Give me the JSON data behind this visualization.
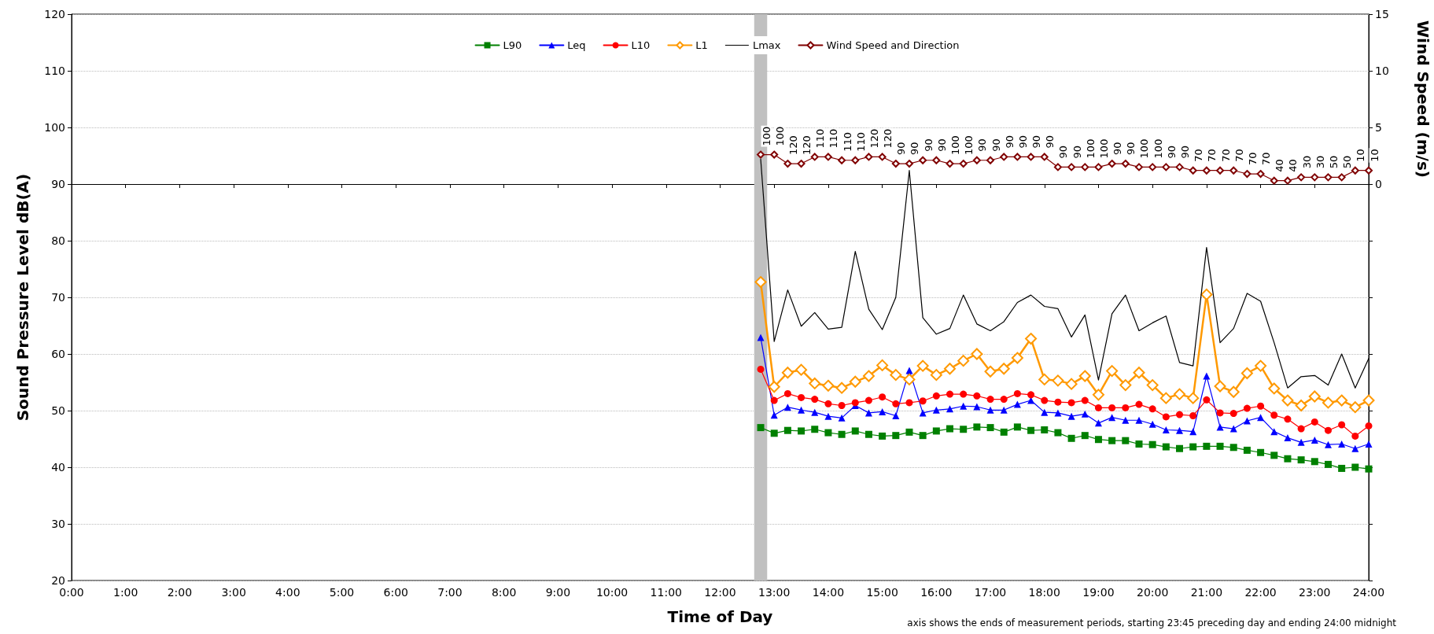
{
  "chart_data": {
    "type": "line",
    "xlabel": "Time of Day",
    "ylabel": "Sound Pressure Level dB(A)",
    "y2label": "Wind Speed (m/s)",
    "annotations": [
      "axis shows the ends of measurement periods, starting 23:45 preceding day and ending 24:00 midnight",
      {
        "text": "100",
        "x": 12.75,
        "y": 95.2
      },
      {
        "text": "100",
        "x": 13,
        "y": 95.2
      },
      {
        "text": "120",
        "x": 13.25,
        "y": 93.6
      },
      {
        "text": "120",
        "x": 13.5,
        "y": 93.6
      },
      {
        "text": "110",
        "x": 13.75,
        "y": 94.8
      },
      {
        "text": "110",
        "x": 14,
        "y": 94.8
      },
      {
        "text": "110",
        "x": 14.25,
        "y": 94.2
      },
      {
        "text": "110",
        "x": 14.5,
        "y": 94.2
      },
      {
        "text": "120",
        "x": 14.75,
        "y": 94.8
      },
      {
        "text": "120",
        "x": 15,
        "y": 94.8
      },
      {
        "text": "90",
        "x": 15.25,
        "y": 93.6
      },
      {
        "text": "90",
        "x": 15.5,
        "y": 93.6
      },
      {
        "text": "90",
        "x": 15.75,
        "y": 94.2
      },
      {
        "text": "90",
        "x": 16,
        "y": 94.2
      },
      {
        "text": "100",
        "x": 16.25,
        "y": 93.6
      },
      {
        "text": "100",
        "x": 16.5,
        "y": 93.6
      },
      {
        "text": "90",
        "x": 16.75,
        "y": 94.2
      },
      {
        "text": "90",
        "x": 17,
        "y": 94.2
      },
      {
        "text": "90",
        "x": 17.25,
        "y": 94.8
      },
      {
        "text": "90",
        "x": 17.5,
        "y": 94.8
      },
      {
        "text": "90",
        "x": 17.75,
        "y": 94.8
      },
      {
        "text": "90",
        "x": 18,
        "y": 94.8
      },
      {
        "text": "90",
        "x": 18.25,
        "y": 93.0
      },
      {
        "text": "90",
        "x": 18.5,
        "y": 93.0
      },
      {
        "text": "100",
        "x": 18.75,
        "y": 93.0
      },
      {
        "text": "100",
        "x": 19,
        "y": 93.0
      },
      {
        "text": "90",
        "x": 19.25,
        "y": 93.6
      },
      {
        "text": "90",
        "x": 19.5,
        "y": 93.6
      },
      {
        "text": "100",
        "x": 19.75,
        "y": 93.0
      },
      {
        "text": "100",
        "x": 20,
        "y": 93.0
      },
      {
        "text": "90",
        "x": 20.25,
        "y": 93.0
      },
      {
        "text": "90",
        "x": 20.5,
        "y": 93.0
      },
      {
        "text": "70",
        "x": 20.75,
        "y": 92.4
      },
      {
        "text": "70",
        "x": 21,
        "y": 92.4
      },
      {
        "text": "70",
        "x": 21.25,
        "y": 92.4
      },
      {
        "text": "70",
        "x": 21.5,
        "y": 92.4
      },
      {
        "text": "70",
        "x": 21.75,
        "y": 91.8
      },
      {
        "text": "70",
        "x": 22,
        "y": 91.8
      },
      {
        "text": "40",
        "x": 22.25,
        "y": 90.6
      },
      {
        "text": "40",
        "x": 22.5,
        "y": 90.6
      },
      {
        "text": "30",
        "x": 22.75,
        "y": 91.2
      },
      {
        "text": "30",
        "x": 23,
        "y": 91.2
      },
      {
        "text": "50",
        "x": 23.25,
        "y": 91.2
      },
      {
        "text": "50",
        "x": 23.5,
        "y": 91.2
      },
      {
        "text": "10",
        "x": 23.75,
        "y": 92.4
      },
      {
        "text": "10",
        "x": 24,
        "y": 92.4
      }
    ],
    "x": [
      12.75,
      13,
      13.25,
      13.5,
      13.75,
      14,
      14.25,
      14.5,
      14.75,
      15,
      15.25,
      15.5,
      15.75,
      16,
      16.25,
      16.5,
      16.75,
      17,
      17.25,
      17.5,
      17.75,
      18,
      18.25,
      18.5,
      18.75,
      19,
      19.25,
      19.5,
      19.75,
      20,
      20.25,
      20.5,
      20.75,
      21,
      21.25,
      21.5,
      21.75,
      22,
      22.25,
      22.5,
      22.75,
      23,
      23.25,
      23.5,
      23.75,
      24
    ],
    "xlim": [
      0,
      24
    ],
    "xticks": [
      {
        "value": 0,
        "label": "0:00"
      },
      {
        "value": 1,
        "label": "1:00"
      },
      {
        "value": 2,
        "label": "2:00"
      },
      {
        "value": 3,
        "label": "3:00"
      },
      {
        "value": 4,
        "label": "4:00"
      },
      {
        "value": 5,
        "label": "5:00"
      },
      {
        "value": 6,
        "label": "6:00"
      },
      {
        "value": 7,
        "label": "7:00"
      },
      {
        "value": 8,
        "label": "8:00"
      },
      {
        "value": 9,
        "label": "9:00"
      },
      {
        "value": 10,
        "label": "10:00"
      },
      {
        "value": 11,
        "label": "11:00"
      },
      {
        "value": 12,
        "label": "12:00"
      },
      {
        "value": 13,
        "label": "13:00"
      },
      {
        "value": 14,
        "label": "14:00"
      },
      {
        "value": 15,
        "label": "15:00"
      },
      {
        "value": 16,
        "label": "16:00"
      },
      {
        "value": 17,
        "label": "17:00"
      },
      {
        "value": 18,
        "label": "18:00"
      },
      {
        "value": 19,
        "label": "19:00"
      },
      {
        "value": 20,
        "label": "20:00"
      },
      {
        "value": 21,
        "label": "21:00"
      },
      {
        "value": 22,
        "label": "22:00"
      },
      {
        "value": 23,
        "label": "23:00"
      },
      {
        "value": 24,
        "label": "24:00"
      }
    ],
    "ylim": [
      20,
      120
    ],
    "yticks": [
      20,
      30,
      40,
      50,
      60,
      70,
      80,
      90,
      100,
      110,
      120
    ],
    "y2lim": [
      -35,
      15
    ],
    "y2ticks": [
      {
        "value": -35,
        "label": null
      },
      {
        "value": -30,
        "label": null
      },
      {
        "value": -25,
        "label": null
      },
      {
        "value": -20,
        "label": null
      },
      {
        "value": -15,
        "label": null
      },
      {
        "value": -10,
        "label": null
      },
      {
        "value": -5,
        "label": null
      },
      0,
      5,
      10,
      15
    ],
    "grid": "y",
    "legend": "top",
    "bands": [
      {
        "axis": "x",
        "from": 12.63,
        "to": 12.87,
        "color": "#c0c0c0"
      }
    ],
    "series": [
      {
        "name": "L90",
        "color": "#008000",
        "marker": "square",
        "values": [
          47.0,
          46.0,
          46.5,
          46.4,
          46.7,
          46.1,
          45.8,
          46.4,
          45.8,
          45.5,
          45.6,
          46.2,
          45.6,
          46.4,
          46.8,
          46.7,
          47.1,
          47.0,
          46.2,
          47.1,
          46.5,
          46.6,
          46.1,
          45.1,
          45.6,
          44.9,
          44.7,
          44.7,
          44.1,
          44.0,
          43.6,
          43.3,
          43.6,
          43.7,
          43.7,
          43.5,
          43.0,
          42.6,
          42.1,
          41.5,
          41.3,
          41.0,
          40.5,
          39.8,
          40.0,
          39.7
        ]
      },
      {
        "name": "Leq",
        "color": "#0000ff",
        "marker": "triangle",
        "values": [
          62.9,
          49.2,
          50.6,
          50.1,
          49.7,
          49.0,
          48.7,
          50.9,
          49.6,
          49.8,
          49.1,
          57.1,
          49.6,
          50.1,
          50.3,
          50.8,
          50.7,
          50.1,
          50.1,
          51.1,
          51.8,
          49.7,
          49.6,
          49.0,
          49.4,
          47.8,
          48.8,
          48.3,
          48.3,
          47.6,
          46.6,
          46.5,
          46.3,
          56.1,
          47.1,
          46.8,
          48.2,
          48.8,
          46.3,
          45.2,
          44.4,
          44.8,
          44.0,
          44.1,
          43.3,
          44.1
        ]
      },
      {
        "name": "L10",
        "color": "#ff0000",
        "marker": "circle",
        "values": [
          57.3,
          51.8,
          53.0,
          52.3,
          52.0,
          51.2,
          50.9,
          51.4,
          51.8,
          52.4,
          51.2,
          51.4,
          51.7,
          52.6,
          52.9,
          52.9,
          52.6,
          52.0,
          52.0,
          53.0,
          52.8,
          51.8,
          51.5,
          51.4,
          51.8,
          50.5,
          50.5,
          50.5,
          51.1,
          50.3,
          48.9,
          49.3,
          49.1,
          51.9,
          49.6,
          49.5,
          50.4,
          50.8,
          49.2,
          48.5,
          46.8,
          48.0,
          46.5,
          47.5,
          45.5,
          47.3
        ]
      },
      {
        "name": "L1",
        "color": "#ff9900",
        "marker": "diamond",
        "values": [
          72.7,
          54.2,
          56.7,
          57.2,
          54.8,
          54.4,
          54.0,
          55.1,
          56.1,
          58.0,
          56.3,
          55.5,
          57.9,
          56.3,
          57.4,
          58.8,
          60.0,
          56.9,
          57.4,
          59.3,
          62.7,
          55.5,
          55.3,
          54.7,
          56.1,
          52.8,
          57.0,
          54.5,
          56.7,
          54.5,
          52.2,
          52.9,
          52.2,
          70.5,
          54.3,
          53.3,
          56.6,
          57.9,
          53.9,
          51.8,
          50.9,
          52.5,
          51.4,
          51.8,
          50.6,
          51.8
        ]
      },
      {
        "name": "Lmax",
        "color": "#000000",
        "marker": "none",
        "values": [
          94.4,
          62.2,
          71.3,
          64.9,
          67.3,
          64.4,
          64.7,
          78.1,
          67.9,
          64.3,
          70.0,
          92.4,
          66.4,
          63.5,
          64.5,
          70.4,
          65.3,
          64.1,
          65.7,
          69.1,
          70.4,
          68.4,
          68.0,
          63.0,
          66.9,
          55.4,
          67.1,
          70.4,
          64.1,
          65.5,
          66.7,
          58.5,
          57.9,
          78.8,
          62.0,
          64.5,
          70.7,
          69.3,
          62.0,
          54.0,
          56.0,
          56.2,
          54.5,
          60.0,
          54.0,
          59.2
        ]
      },
      {
        "name": "Wind Speed and Direction",
        "color": "#800000",
        "marker": "diamond",
        "axis": "y2",
        "values": [
          2.6,
          2.6,
          1.8,
          1.8,
          2.4,
          2.4,
          2.1,
          2.1,
          2.4,
          2.4,
          1.8,
          1.8,
          2.1,
          2.1,
          1.8,
          1.8,
          2.1,
          2.1,
          2.4,
          2.4,
          2.4,
          2.4,
          1.5,
          1.5,
          1.5,
          1.5,
          1.8,
          1.8,
          1.5,
          1.5,
          1.5,
          1.5,
          1.2,
          1.2,
          1.2,
          1.2,
          0.9,
          0.9,
          0.3,
          0.3,
          0.6,
          0.6,
          0.6,
          0.6,
          1.2,
          1.2
        ]
      }
    ]
  }
}
